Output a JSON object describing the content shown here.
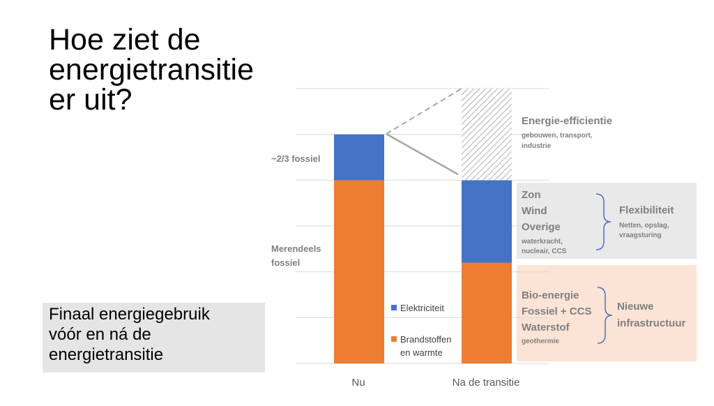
{
  "slide": {
    "title_lines": [
      "Hoe ziet de",
      "energietransitie",
      "er uit?"
    ],
    "caption_lines": [
      "Finaal energiegebruik",
      "vóór en ná de",
      "energietransitie"
    ]
  },
  "colors": {
    "electricity": "#4472c4",
    "fuels_heat": "#ed7d31",
    "efficiency_panel": "#e9e9e9",
    "infra_panel": "#fbe3d6",
    "label_grey": "#7f7f7f",
    "gridline": "#d9d9d9"
  },
  "chart_data": {
    "type": "bar",
    "stacked": true,
    "categories": [
      "Nu",
      "Na de transitie"
    ],
    "series": [
      {
        "name": "Brandstoffen en warmte",
        "values": [
          4,
          2.2
        ]
      },
      {
        "name": "Elektriciteit",
        "values": [
          1,
          1.8
        ]
      }
    ],
    "efficiency_savings": {
      "category": "Na de transitie",
      "from": 4,
      "to": 6,
      "pattern": "hatched"
    },
    "ylim": [
      0,
      6
    ],
    "grid": true,
    "legend_placement": "between bars",
    "legend": {
      "electricity": "Elektriciteit",
      "fuels_line1": "Brandstoffen",
      "fuels_line2": "en warmte"
    },
    "annotations": {
      "fossil_share": "~2/3 fossiel",
      "mostly_fossil_line1": "Merendeels",
      "mostly_fossil_line2": "fossiel",
      "efficiency": {
        "title": "Energie-efficientie",
        "sub_line1": "gebouwen, transport,",
        "sub_line2": "industrie"
      },
      "renewables": {
        "items": [
          "Zon",
          "Wind",
          "Overige"
        ],
        "sub_line1": "waterkracht,",
        "sub_line2": "nucleair, CCS"
      },
      "flexibility": {
        "title": "Flexibiliteit",
        "sub_line1": "Netten, opslag,",
        "sub_line2": "vraagsturing"
      },
      "fuels_future": {
        "items": [
          "Bio-energie",
          "Fossiel + CCS",
          "Waterstof"
        ],
        "sub": "geothermie"
      },
      "new_infra": {
        "line1": "Nieuwe",
        "line2": "infrastructuur"
      }
    }
  }
}
